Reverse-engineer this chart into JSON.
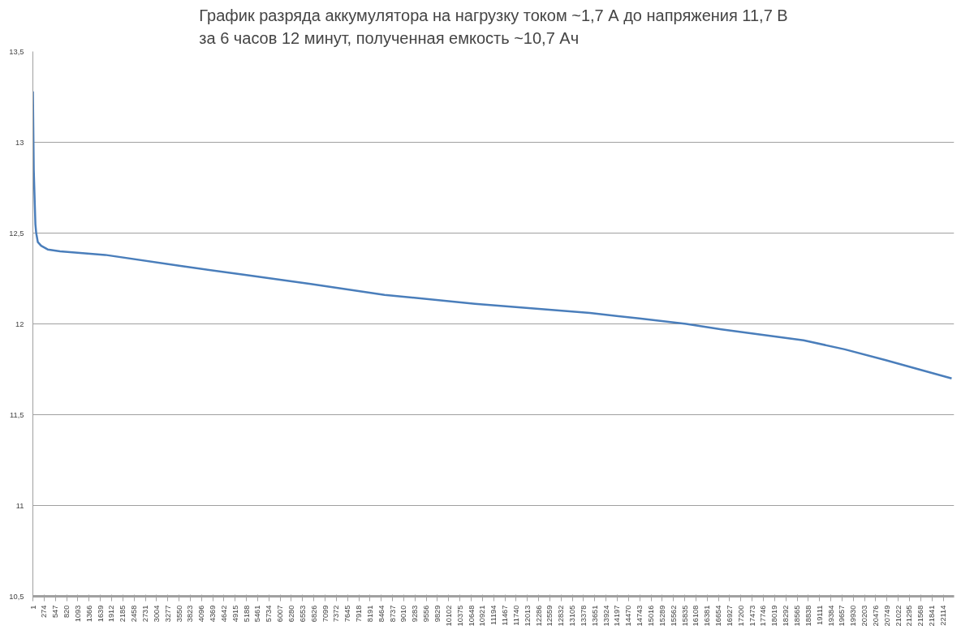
{
  "chart_data": {
    "type": "line",
    "title": "График разряда аккумулятора на нагрузку током ~1,7 А до напряжения 11,7 В\nза 6 часов 12 минут, полученная емкость ~10,7 Ач",
    "x": [
      1,
      21,
      41,
      61,
      81,
      121,
      201,
      360,
      660,
      1757,
      3554,
      5151,
      6748,
      8544,
      10740,
      13534,
      14731,
      15870,
      16727,
      17725,
      18723,
      19721,
      20720,
      21518,
      22320
    ],
    "series": [
      {
        "color": "#4a7ebb",
        "values": [
          13.28,
          12.85,
          12.7,
          12.55,
          12.5,
          12.45,
          12.43,
          12.41,
          12.4,
          12.38,
          12.32,
          12.27,
          12.22,
          12.16,
          12.11,
          12.06,
          12.03,
          12.0,
          11.97,
          11.94,
          11.91,
          11.86,
          11.8,
          11.75,
          11.7
        ]
      }
    ],
    "xlim": [
      0,
      22380
    ],
    "xticks": [
      1,
      274,
      547,
      820,
      1093,
      1366,
      1639,
      1912,
      2185,
      2458,
      2731,
      3004,
      3277,
      3550,
      3823,
      4096,
      4369,
      4642,
      4915,
      5188,
      5461,
      5734,
      6007,
      6280,
      6553,
      6826,
      7099,
      7372,
      7645,
      7918,
      8191,
      8464,
      8737,
      9010,
      9283,
      9556,
      9829,
      10102,
      10375,
      10648,
      10921,
      11194,
      11467,
      11740,
      12013,
      12286,
      12559,
      12832,
      13105,
      13378,
      13651,
      13924,
      14197,
      14470,
      14743,
      15016,
      15289,
      15562,
      15835,
      16108,
      16381,
      16654,
      16927,
      17200,
      17473,
      17746,
      18019,
      18292,
      18565,
      18838,
      19111,
      19384,
      19657,
      19930,
      20203,
      20476,
      20749,
      21022,
      21295,
      21568,
      21841,
      22114
    ],
    "ylim": [
      10.5,
      13.5
    ],
    "yticks": [
      {
        "value": 10.5,
        "label": "10,5"
      },
      {
        "value": 11,
        "label": "11"
      },
      {
        "value": 11.5,
        "label": "11,5"
      },
      {
        "value": 12,
        "label": "12"
      },
      {
        "value": 12.5,
        "label": "12,5"
      },
      {
        "value": 13,
        "label": "13"
      },
      {
        "value": 13.5,
        "label": "13,5"
      }
    ],
    "grid": "y",
    "marker": "none",
    "line_style": "solid"
  }
}
